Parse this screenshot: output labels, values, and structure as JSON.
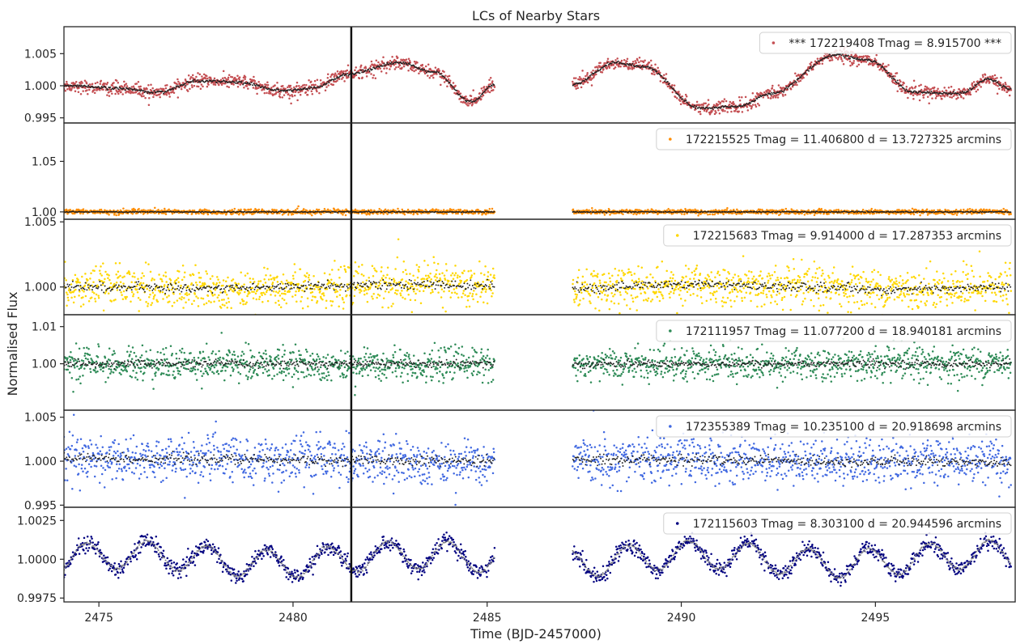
{
  "chart_data": {
    "type": "scatter",
    "title": "LCs of Nearby Stars",
    "xlabel": "Time (BJD-2457000)",
    "ylabel": "Normalised Flux",
    "xlim": [
      2474.1,
      2498.6
    ],
    "x_ticks": [
      "2475",
      "2480",
      "2485",
      "2490",
      "2495"
    ],
    "x_tick_values": [
      2475,
      2480,
      2485,
      2490,
      2495
    ],
    "gap": [
      2485.2,
      2487.2
    ],
    "vertical_marker_x": 2481.5,
    "binned_color": "#111111",
    "legend_placement": "top-right",
    "grid": false,
    "panels": [
      {
        "legend": "*** 172219408  Tmag = 8.915700 ***",
        "color": "#c44e52",
        "binned_color": "#222222",
        "ylim": [
          0.9942,
          1.0092
        ],
        "y_ticks": [
          "1.005",
          "1.000",
          "0.995"
        ],
        "y_tick_values": [
          1.005,
          1.0,
          0.995
        ],
        "trend_knots": [
          [
            2474.1,
            1.0
          ],
          [
            2475.5,
            0.9996
          ],
          [
            2476.5,
            0.999
          ],
          [
            2477.6,
            1.0008
          ],
          [
            2478.5,
            1.0006
          ],
          [
            2479.8,
            0.9992
          ],
          [
            2480.5,
            0.9996
          ],
          [
            2481.4,
            1.0018
          ],
          [
            2482.7,
            1.0036
          ],
          [
            2483.6,
            1.0022
          ],
          [
            2484.6,
            0.9975
          ],
          [
            2485.2,
            1.0002
          ],
          [
            2487.2,
            1.0002
          ],
          [
            2488.3,
            1.0036
          ],
          [
            2489.0,
            1.003
          ],
          [
            2490.5,
            0.9965
          ],
          [
            2491.5,
            0.9968
          ],
          [
            2492.3,
            0.9988
          ],
          [
            2494.0,
            1.0048
          ],
          [
            2494.8,
            1.004
          ],
          [
            2496.0,
            0.999
          ],
          [
            2497.2,
            0.9988
          ],
          [
            2497.9,
            1.001
          ],
          [
            2498.5,
            0.9995
          ]
        ],
        "scatter": 0.0005,
        "points": 2000
      },
      {
        "legend": "172215525  Tmag = 11.406800   d = 13.727325 arcmins",
        "color": "#ff8c00",
        "binned_color": "#222222",
        "ylim": [
          0.9927,
          1.088
        ],
        "y_ticks": [
          "1.05",
          "1.00"
        ],
        "y_tick_values": [
          1.05,
          1.0
        ],
        "trend_knots": [
          [
            2474.1,
            1.0
          ],
          [
            2498.6,
            1.0
          ]
        ],
        "scatter": 0.0012,
        "points": 1800
      },
      {
        "legend": "172215683  Tmag = 9.914000   d = 17.287353 arcmins",
        "color": "#ffd700",
        "binned_color": "#222222",
        "ylim": [
          0.99787,
          1.0052
        ],
        "y_ticks": [
          "1.005",
          "1.000"
        ],
        "y_tick_values": [
          1.005,
          1.0
        ],
        "trend_knots": [
          [
            2474.1,
            1.0
          ],
          [
            2478.0,
            0.9999
          ],
          [
            2481.0,
            1.0001
          ],
          [
            2483.0,
            1.0002
          ],
          [
            2485.2,
            1.0001
          ],
          [
            2487.2,
            0.9999
          ],
          [
            2490.0,
            1.0002
          ],
          [
            2493.0,
            1.0
          ],
          [
            2495.5,
            0.9998
          ],
          [
            2498.6,
            1.0
          ]
        ],
        "scatter": 0.00075,
        "points": 1800
      },
      {
        "legend": "172111957  Tmag = 11.077200   d = 18.940181 arcmins",
        "color": "#2e8b57",
        "binned_color": "#222222",
        "ylim": [
          0.9875,
          1.0132
        ],
        "y_ticks": [
          "1.01",
          "1.00"
        ],
        "y_tick_values": [
          1.01,
          1.0
        ],
        "trend_knots": [
          [
            2474.1,
            1.0
          ],
          [
            2498.6,
            1.0
          ]
        ],
        "scatter": 0.0022,
        "points": 1800
      },
      {
        "legend": "172355389  Tmag = 10.235100   d = 20.918698 arcmins",
        "color": "#4169e1",
        "binned_color": "#222222",
        "ylim": [
          0.99476,
          1.0058
        ],
        "y_ticks": [
          "1.005",
          "1.000",
          "0.995"
        ],
        "y_tick_values": [
          1.005,
          1.0,
          0.995
        ],
        "trend_knots": [
          [
            2474.1,
            1.0003
          ],
          [
            2485.2,
            1.0
          ],
          [
            2487.2,
            1.0002
          ],
          [
            2498.6,
            0.9999
          ]
        ],
        "scatter": 0.0013,
        "points": 1800
      },
      {
        "legend": "172115603  Tmag = 8.303100   d = 20.944596 arcmins",
        "color": "#000080",
        "binned_color": "#808080",
        "ylim": [
          0.99725,
          1.00335
        ],
        "y_ticks": [
          "1.0025",
          "1.0000",
          "0.9975"
        ],
        "y_tick_values": [
          1.0025,
          1.0,
          0.9975
        ],
        "oscillation": {
          "period": 1.55,
          "amplitude": 0.0009,
          "drift": 0.0003
        },
        "scatter": 0.00025,
        "points": 1600
      }
    ]
  }
}
